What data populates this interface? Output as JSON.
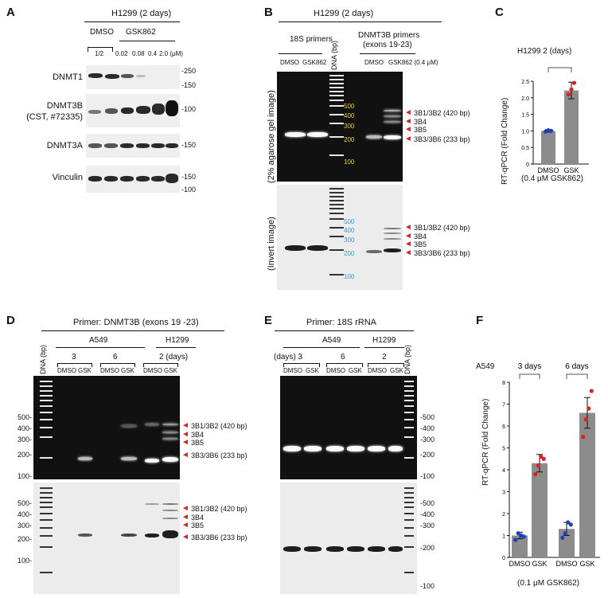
{
  "panels": {
    "a": {
      "label": "A",
      "cell_title": "H1299 (2 days)",
      "lane_labels": [
        "DMSO",
        "GSK862"
      ],
      "ratio": "1/2",
      "doses": [
        "0.02",
        "0.08",
        "0.4",
        "2.0 (μM)"
      ],
      "proteins": [
        "DNMT1",
        "DNMT3B\n(CST, #72335)",
        "DNMT3A",
        "Vinculin"
      ],
      "protein_dnmt3b_line1": "DNMT3B",
      "protein_dnmt3b_line2": "(CST, #72335)",
      "markers": [
        "-250",
        "-150",
        "-100",
        "-150",
        "-150",
        "-100"
      ]
    },
    "b": {
      "label": "B",
      "cell_title": "H1299 (2 days)",
      "primer_18s": "18S primers",
      "primer_dnmt3b_line1": "DNMT3B primers",
      "primer_dnmt3b_line2": "(exons 19-23)",
      "lanes_left": [
        "DMSO",
        "GSK862"
      ],
      "ladder_label": "DNA (bp)",
      "lanes_right": [
        "DMSO",
        "GSK862 (0.4 μM)"
      ],
      "gel_label": "(2% agarose gel image)",
      "invert_label": "(Invert image)",
      "ladder_marks": [
        "500",
        "400",
        "300",
        "200",
        "100"
      ],
      "band_labels": [
        "3B1/3B2 (420 bp)",
        "3B4",
        "3B5",
        "3B3/3B6 (233 bp)"
      ]
    },
    "c": {
      "label": "C",
      "chart_title": "H1299  2 (days)",
      "ylabel": "RT-qPCR (Fold Change)",
      "footnote": "(0.4 μM GSK862)"
    },
    "d": {
      "label": "D",
      "primer": "Primer: DNMT3B (exons 19 -23)",
      "cells": [
        "A549",
        "H1299"
      ],
      "days": [
        "3",
        "6",
        "2 (days)"
      ],
      "ladder_label": "DNA (bp)",
      "lanes": [
        "DMSO",
        "GSK",
        "DMSO",
        "GSK",
        "DMSO",
        "GSK"
      ],
      "ladder_marks": [
        "500-",
        "400-",
        "300-",
        "200-",
        "100-"
      ],
      "band_labels": [
        "3B1/3B2 (420 bp)",
        "3B4",
        "3B5",
        "3B3/3B6 (233 bp)"
      ]
    },
    "e": {
      "label": "E",
      "primer": "Primer: 18S rRNA",
      "cells": [
        "A549",
        "H1299"
      ],
      "days_prefix": "(days) 3",
      "days": [
        "6",
        "2"
      ],
      "ladder_label": "DNA (bp)",
      "lanes": [
        "DMSO",
        "GSK",
        "DMSO",
        "GSK",
        "DMSO",
        "GSK"
      ],
      "ladder_marks": [
        "-500",
        "-400",
        "-300",
        "-200",
        "-100"
      ]
    },
    "f": {
      "label": "F",
      "cell": "A549",
      "groups": [
        "3 days",
        "6 days"
      ],
      "ylabel": "RT-qPCR (Fold Change)",
      "footnote": "(0.1 μM GSK862)"
    }
  },
  "chart_data": [
    {
      "type": "bar",
      "title": "H1299  2 (days)",
      "ylabel": "RT-qPCR (Fold Change)",
      "categories": [
        "DMSO",
        "GSK"
      ],
      "values": [
        1.0,
        2.22
      ],
      "errors": [
        0.04,
        0.25
      ],
      "points": [
        [
          0.98,
          1.02,
          1.0
        ],
        [
          2.1,
          2.25,
          2.45
        ]
      ],
      "ylim": [
        0,
        2.5
      ],
      "yticks": [
        "0",
        "0.5",
        "1.0",
        "1.5",
        "2.0",
        "2.5"
      ],
      "colors": {
        "bar": "#8c8c8c",
        "dmso_points": "#1f3fbf",
        "gsk_points": "#e02020"
      }
    },
    {
      "type": "bar",
      "ylabel": "RT-qPCR (Fold Change)",
      "categories": [
        "DMSO",
        "GSK",
        "DMSO",
        "GSK"
      ],
      "group_labels": [
        "3 days",
        "6 days"
      ],
      "values": [
        1.0,
        4.3,
        1.3,
        6.6
      ],
      "errors": [
        0.15,
        0.4,
        0.3,
        0.7
      ],
      "points": [
        [
          0.8,
          1.1,
          1.0,
          0.95
        ],
        [
          3.8,
          4.2,
          4.6,
          4.5
        ],
        [
          0.9,
          1.1,
          1.6,
          1.5
        ],
        [
          5.5,
          6.3,
          6.8,
          7.6
        ]
      ],
      "ylim": [
        0,
        8
      ],
      "yticks": [
        "0",
        "1",
        "2",
        "3",
        "4",
        "5",
        "6",
        "7",
        "8"
      ],
      "colors": {
        "bar": "#8c8c8c",
        "dmso_points": "#1f3fbf",
        "gsk_points": "#e02020"
      }
    }
  ]
}
